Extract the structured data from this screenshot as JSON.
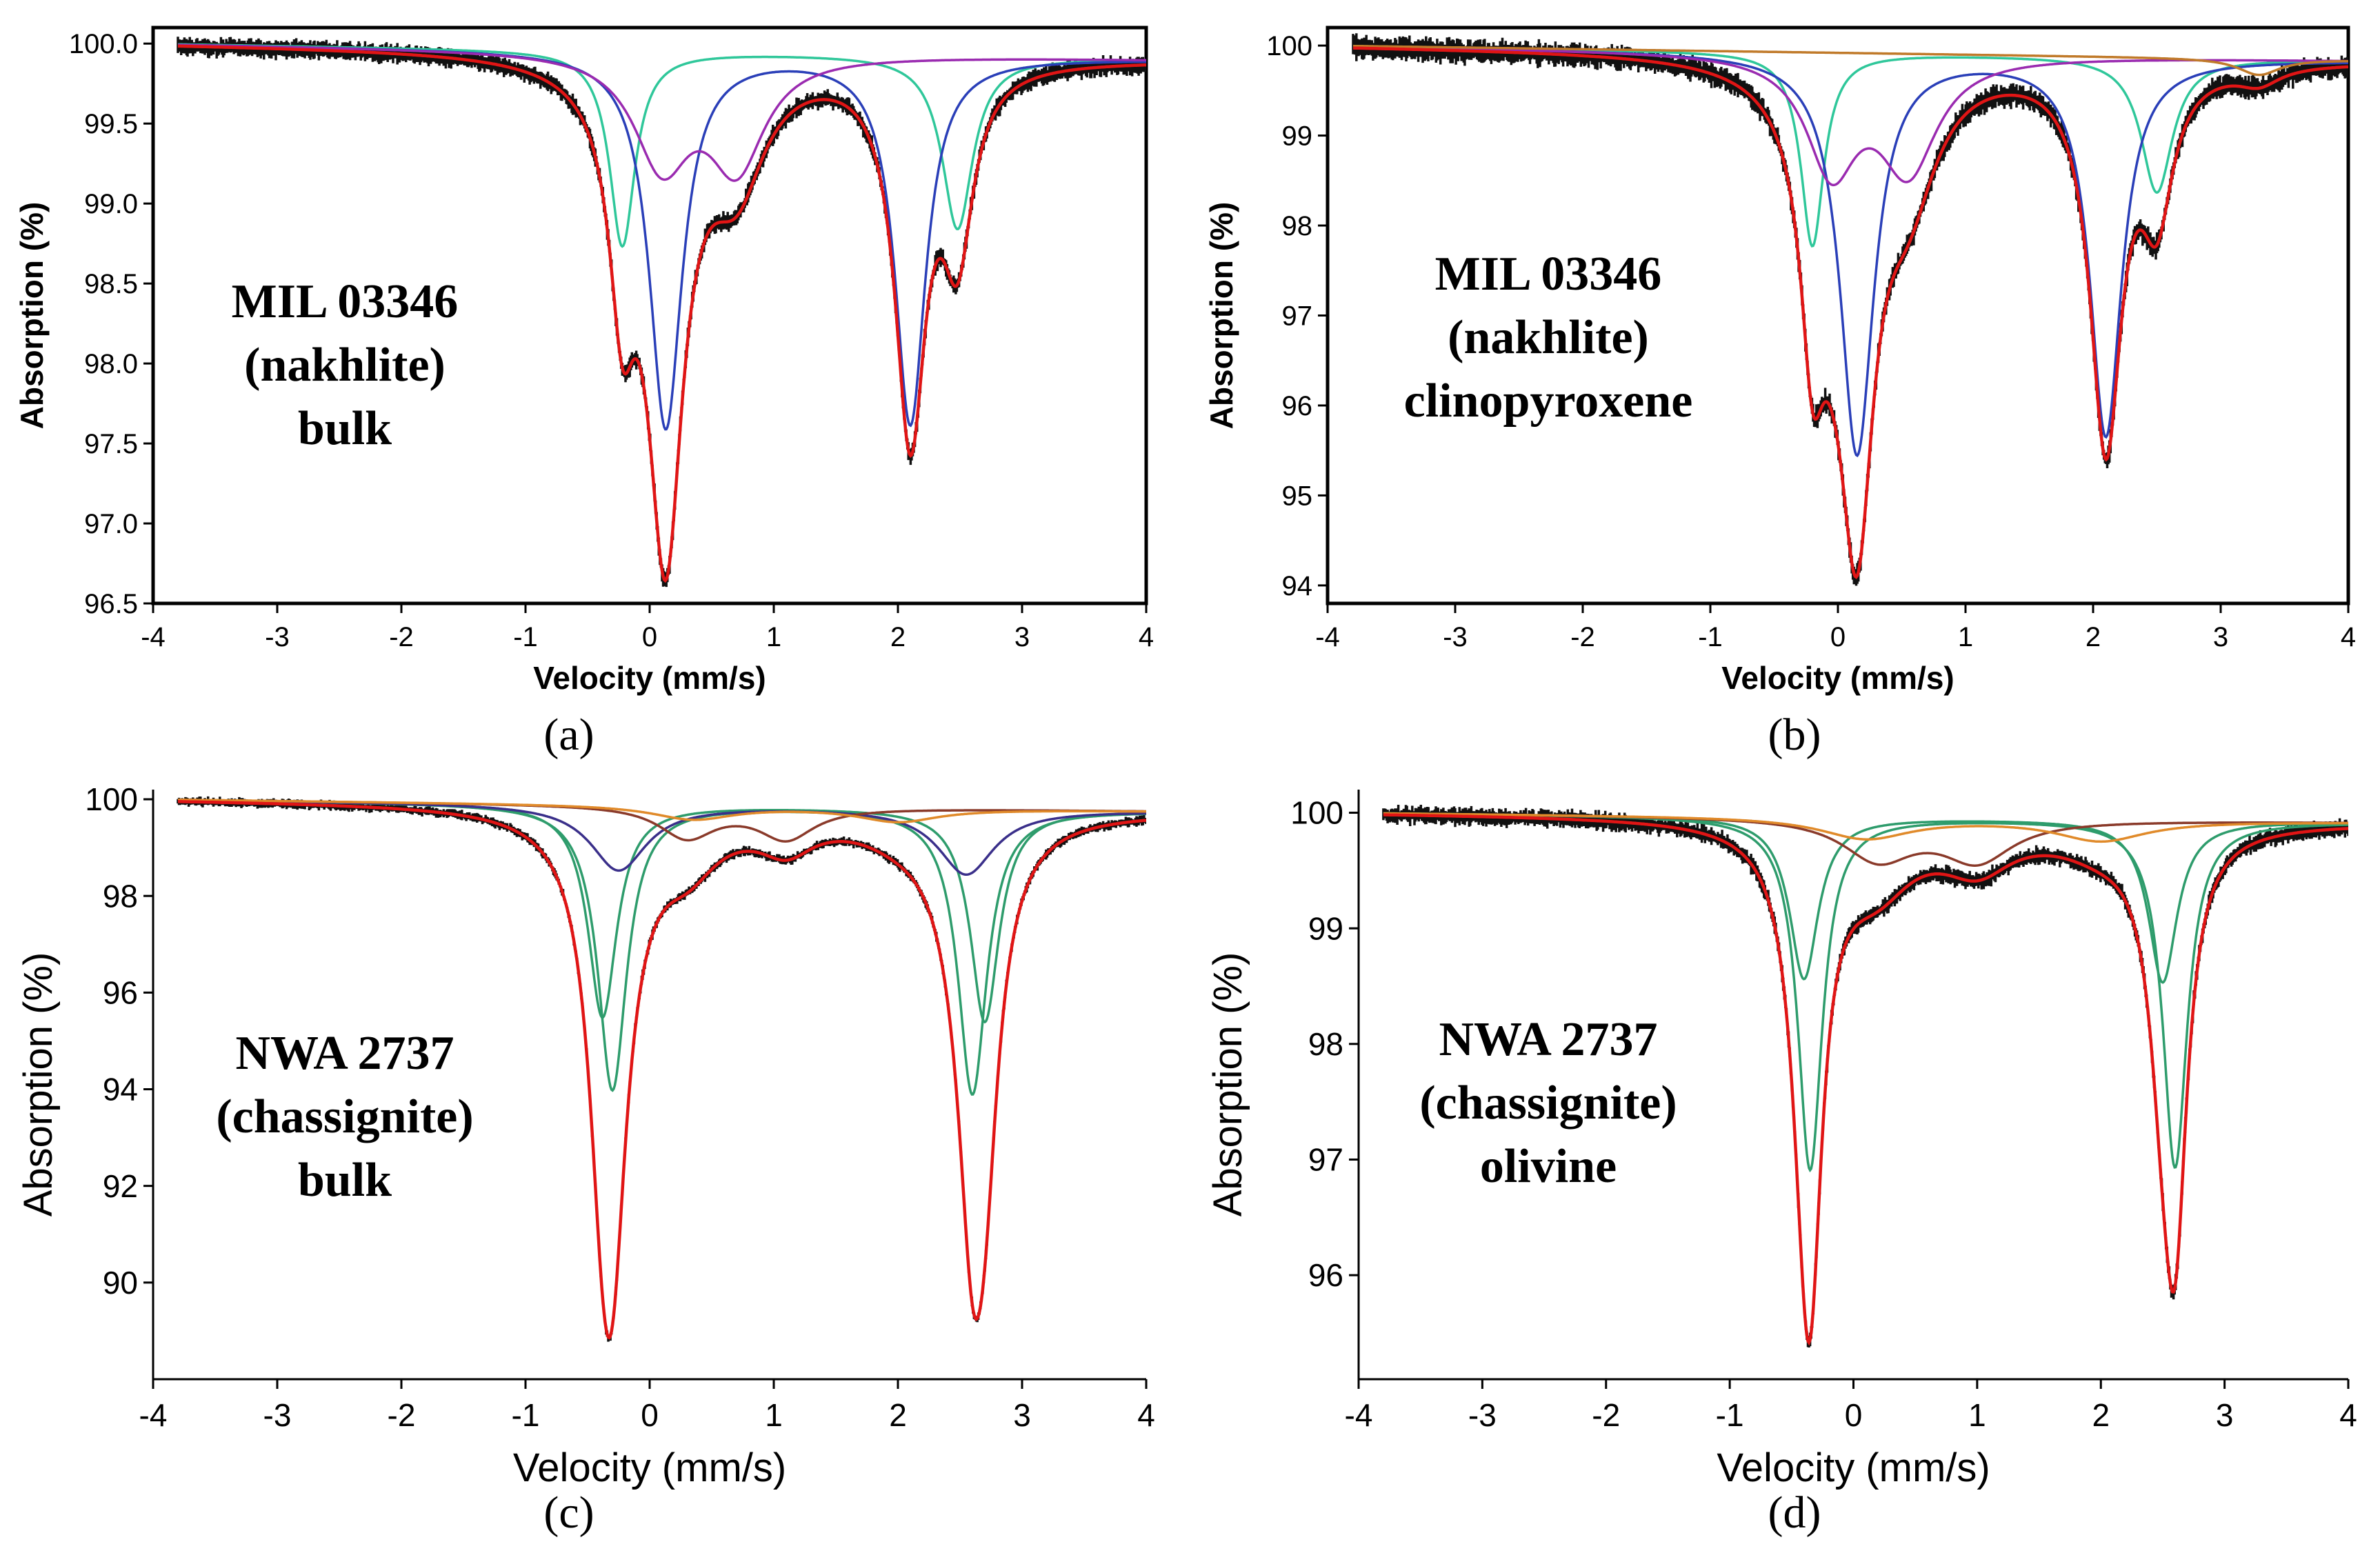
{
  "chart_data": [
    {
      "id": "a",
      "type": "line",
      "caption": "(a)",
      "annotation": [
        "MIL 03346",
        "(nakhlite)",
        "bulk"
      ],
      "xlabel": "Velocity (mm/s)",
      "ylabel": "Absorption (%)",
      "xlim": [
        -4,
        4
      ],
      "ylim": [
        96.5,
        100.1
      ],
      "xticks": [
        -4,
        -3,
        -2,
        -1,
        0,
        1,
        2,
        3,
        4
      ],
      "xticklabels": [
        "-4",
        "-3",
        "-2",
        "-1",
        "0",
        "1",
        "2",
        "3",
        "4"
      ],
      "yticks": [
        96.5,
        97.0,
        97.5,
        98.0,
        98.5,
        99.0,
        99.5,
        100.0
      ],
      "yticklabels": [
        "96.5",
        "97.0",
        "97.5",
        "98.0",
        "98.5",
        "99.0",
        "99.5",
        "100.0"
      ],
      "axis_style": "bold-small",
      "data_color": "#111111",
      "noise": 0.055,
      "baseline": {
        "v0": 100.0,
        "tilt": 0.012
      },
      "components": [
        {
          "name": "component 1",
          "color": "#2fc79a",
          "peaks": [
            {
              "c": -0.22,
              "d": 1.22,
              "w": 0.25
            },
            {
              "c": 2.48,
              "d": 1.08,
              "w": 0.3
            }
          ]
        },
        {
          "name": "component 2",
          "color": "#2a3fb8",
          "peaks": [
            {
              "c": 0.13,
              "d": 2.35,
              "w": 0.32
            },
            {
              "c": 2.1,
              "d": 2.3,
              "w": 0.3
            }
          ]
        },
        {
          "name": "component 3",
          "color": "#9a2bb0",
          "peaks": [
            {
              "c": 0.1,
              "d": 0.68,
              "w": 0.55
            },
            {
              "c": 0.7,
              "d": 0.68,
              "w": 0.55
            }
          ]
        }
      ],
      "fit": {
        "name": "total fit",
        "color": "#e01515"
      }
    },
    {
      "id": "b",
      "type": "line",
      "caption": "(b)",
      "annotation": [
        "MIL 03346",
        "(nakhlite)",
        "clinopyroxene"
      ],
      "xlabel": "Velocity (mm/s)",
      "ylabel": "Absorption (%)",
      "xlim": [
        -4,
        4
      ],
      "ylim": [
        93.8,
        100.2
      ],
      "xticks": [
        -4,
        -3,
        -2,
        -1,
        0,
        1,
        2,
        3,
        4
      ],
      "xticklabels": [
        "-4",
        "-3",
        "-2",
        "-1",
        "0",
        "1",
        "2",
        "3",
        "4"
      ],
      "yticks": [
        94,
        95,
        96,
        97,
        98,
        99,
        100
      ],
      "yticklabels": [
        "94",
        "95",
        "96",
        "97",
        "98",
        "99",
        "100"
      ],
      "axis_style": "bold-small",
      "data_color": "#111111",
      "noise": 0.12,
      "baseline": {
        "v0": 100.0,
        "tilt": 0.02
      },
      "components": [
        {
          "name": "component 1",
          "color": "#2fc79a",
          "peaks": [
            {
              "c": -0.2,
              "d": 2.15,
              "w": 0.22
            },
            {
              "c": 2.5,
              "d": 1.5,
              "w": 0.3
            }
          ]
        },
        {
          "name": "component 2",
          "color": "#2a3fb8",
          "peaks": [
            {
              "c": 0.15,
              "d": 4.45,
              "w": 0.32
            },
            {
              "c": 2.1,
              "d": 4.2,
              "w": 0.3
            }
          ]
        },
        {
          "name": "component 3",
          "color": "#9a2bb0",
          "peaks": [
            {
              "c": -0.05,
              "d": 1.25,
              "w": 0.48
            },
            {
              "c": 0.55,
              "d": 1.25,
              "w": 0.55
            }
          ]
        },
        {
          "name": "component 4",
          "color": "#c07a2a",
          "peaks": [
            {
              "c": 3.3,
              "d": 0.18,
              "w": 0.4
            }
          ]
        }
      ],
      "fit": {
        "name": "total fit",
        "color": "#e01515"
      }
    },
    {
      "id": "c",
      "type": "line",
      "caption": "(c)",
      "annotation": [
        "NWA 2737",
        "(chassignite)",
        "bulk"
      ],
      "xlabel": "Velocity (mm/s)",
      "ylabel": "Absorption (%)",
      "xlim": [
        -4,
        4
      ],
      "ylim": [
        88,
        100.2
      ],
      "xticks": [
        -4,
        -3,
        -2,
        -1,
        0,
        1,
        2,
        3,
        4
      ],
      "xticklabels": [
        "-4",
        "-3",
        "-2",
        "-1",
        "0",
        "1",
        "2",
        "3",
        "4"
      ],
      "yticks": [
        90,
        92,
        94,
        96,
        98,
        100
      ],
      "yticklabels": [
        "90",
        "92",
        "94",
        "96",
        "98",
        "100"
      ],
      "axis_style": "plain-large",
      "data_color": "#111111",
      "noise": 0.09,
      "baseline": {
        "v0": 100.0,
        "tilt": 0.03
      },
      "components": [
        {
          "name": "component 1",
          "color": "#2e9c6c",
          "peaks": [
            {
              "c": -0.3,
              "d": 5.9,
              "w": 0.28
            },
            {
              "c": 2.6,
              "d": 5.9,
              "w": 0.28
            }
          ]
        },
        {
          "name": "component 2",
          "color": "#2e9c6c",
          "peaks": [
            {
              "c": -0.38,
              "d": 4.4,
              "w": 0.28
            },
            {
              "c": 2.7,
              "d": 4.4,
              "w": 0.28
            }
          ]
        },
        {
          "name": "component 3",
          "color": "#3a2f8a",
          "peaks": [
            {
              "c": -0.25,
              "d": 1.35,
              "w": 0.55
            },
            {
              "c": 2.55,
              "d": 1.35,
              "w": 0.55
            }
          ]
        },
        {
          "name": "component 4",
          "color": "#8a3a2a",
          "peaks": [
            {
              "c": 0.3,
              "d": 0.65,
              "w": 0.55
            },
            {
              "c": 1.1,
              "d": 0.65,
              "w": 0.55
            }
          ]
        },
        {
          "name": "component 5",
          "color": "#e08a2a",
          "peaks": [
            {
              "c": 0.35,
              "d": 0.28,
              "w": 0.8
            },
            {
              "c": 2.0,
              "d": 0.28,
              "w": 0.8
            }
          ]
        }
      ],
      "fit": {
        "name": "total fit",
        "color": "#e01515"
      }
    },
    {
      "id": "d",
      "type": "line",
      "caption": "(d)",
      "annotation": [
        "NWA 2737",
        "(chassignite)",
        "olivine"
      ],
      "xlabel": "Velocity (mm/s)",
      "ylabel": "Absorption (%)",
      "xlim": [
        -4,
        4
      ],
      "ylim": [
        95.1,
        100.2
      ],
      "xticks": [
        -4,
        -3,
        -2,
        -1,
        0,
        1,
        2,
        3,
        4
      ],
      "xticklabels": [
        "-4",
        "-3",
        "-2",
        "-1",
        "0",
        "1",
        "2",
        "3",
        "4"
      ],
      "yticks": [
        96,
        97,
        98,
        99,
        100
      ],
      "yticklabels": [
        "96",
        "97",
        "98",
        "99",
        "100"
      ],
      "axis_style": "plain-large",
      "data_color": "#111111",
      "noise": 0.07,
      "baseline": {
        "v0": 100.0,
        "tilt": 0.01
      },
      "components": [
        {
          "name": "component 1",
          "color": "#2e9c6c",
          "peaks": [
            {
              "c": -0.35,
              "d": 3.05,
              "w": 0.24
            },
            {
              "c": 2.6,
              "d": 3.0,
              "w": 0.24
            }
          ]
        },
        {
          "name": "component 2",
          "color": "#2e9c6c",
          "peaks": [
            {
              "c": -0.4,
              "d": 1.4,
              "w": 0.28
            },
            {
              "c": 2.5,
              "d": 1.4,
              "w": 0.28
            }
          ]
        },
        {
          "name": "component 3",
          "color": "#8a3a2a",
          "peaks": [
            {
              "c": 0.2,
              "d": 0.35,
              "w": 0.7
            },
            {
              "c": 1.0,
              "d": 0.35,
              "w": 0.7
            }
          ]
        },
        {
          "name": "component 4",
          "color": "#e08a2a",
          "peaks": [
            {
              "c": 0.1,
              "d": 0.18,
              "w": 0.9
            },
            {
              "c": 2.0,
              "d": 0.18,
              "w": 0.9
            }
          ]
        }
      ],
      "fit": {
        "name": "total fit",
        "color": "#e01515"
      }
    }
  ]
}
